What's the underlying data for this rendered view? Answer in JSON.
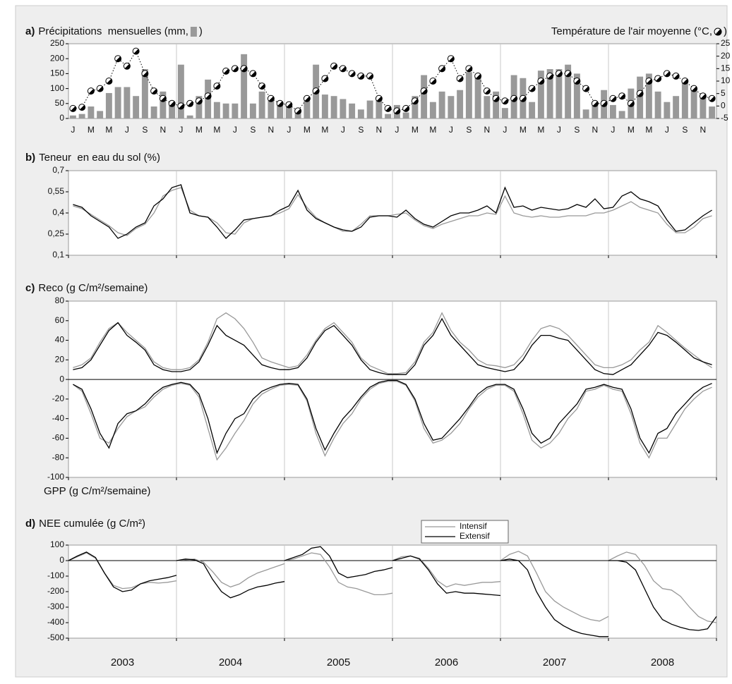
{
  "chart_data": [
    {
      "type": "bar",
      "label": "a)",
      "title": "Précipitations  mensuelles (mm,",
      "title_end": ")",
      "y2_title": "Température de l'air moyenne (°C,",
      "y2_title_end": ")",
      "categories": [
        "J",
        null,
        "M",
        null,
        "M",
        null,
        "J",
        null,
        "S",
        null,
        "N",
        null,
        "J",
        null,
        "M",
        null,
        "M",
        null,
        "J",
        null,
        "S",
        null,
        "N",
        null,
        "J",
        null,
        "M",
        null,
        "M",
        null,
        "J",
        null,
        "S",
        null,
        "N",
        null,
        "J",
        null,
        "M",
        null,
        "M",
        null,
        "J",
        null,
        "S",
        null,
        "N",
        null,
        "J",
        null,
        "M",
        null,
        "M",
        null,
        "J",
        null,
        "S",
        null,
        "N",
        null,
        "J",
        null,
        "M",
        null,
        "M",
        null,
        "J",
        null,
        "S",
        null,
        "N",
        null
      ],
      "ylim": [
        0,
        250
      ],
      "yticks": [
        0,
        50,
        100,
        150,
        200,
        250
      ],
      "y2lim": [
        -5,
        25
      ],
      "y2ticks": [
        -5,
        0,
        5,
        10,
        15,
        20,
        25
      ],
      "series": [
        {
          "type": "bar",
          "color": "#999999",
          "values": [
            10,
            15,
            40,
            25,
            85,
            105,
            105,
            75,
            165,
            40,
            90,
            45,
            180,
            10,
            75,
            130,
            55,
            50,
            50,
            215,
            50,
            90,
            60,
            45,
            40,
            25,
            60,
            180,
            80,
            75,
            65,
            50,
            30,
            60,
            70,
            15,
            45,
            20,
            75,
            145,
            55,
            90,
            75,
            95,
            155,
            140,
            75,
            90,
            35,
            145,
            135,
            55,
            160,
            165,
            165,
            180,
            150,
            30,
            55,
            95,
            45,
            25,
            100,
            140,
            150,
            90,
            55,
            75,
            120,
            95,
            70,
            40
          ]
        },
        {
          "type": "line",
          "axis": "y2",
          "color": "#000000",
          "values": [
            -1,
            -0.5,
            6,
            7,
            10,
            19,
            16,
            22,
            13,
            6,
            3,
            1,
            0,
            1,
            2,
            4,
            8,
            14,
            15,
            15,
            13,
            8,
            3,
            1,
            0.5,
            -2,
            3,
            6,
            11,
            16,
            15,
            13,
            12,
            12,
            3,
            -1,
            -2,
            -1,
            2,
            6,
            10,
            15,
            19,
            11,
            15,
            12,
            6,
            3,
            2,
            3,
            3,
            7,
            10,
            12,
            13,
            13,
            10,
            7,
            1,
            1,
            3,
            4,
            1,
            5,
            10,
            11,
            13,
            12,
            10,
            7,
            4,
            3
          ]
        }
      ]
    },
    {
      "type": "line",
      "label": "b)",
      "title": "Teneur  en eau du sol (%)",
      "ylim": [
        0.1,
        0.7
      ],
      "yticks": [
        {
          "value": 0.1,
          "label": "0,1"
        },
        {
          "value": 0.25,
          "label": "0,25"
        },
        {
          "value": 0.4,
          "label": "0,4"
        },
        {
          "value": 0.55,
          "label": "0,55"
        },
        {
          "value": 0.7,
          "label": "0,7"
        }
      ],
      "series": [
        {
          "color": "#999999",
          "values": [
            0.45,
            0.43,
            0.39,
            0.35,
            0.31,
            0.26,
            0.24,
            0.29,
            0.32,
            0.4,
            0.52,
            0.56,
            0.58,
            0.42,
            0.38,
            0.37,
            0.33,
            0.26,
            0.25,
            0.33,
            0.36,
            0.37,
            0.38,
            0.4,
            0.43,
            0.53,
            0.44,
            0.37,
            0.33,
            0.3,
            0.27,
            0.27,
            0.32,
            0.38,
            0.38,
            0.38,
            0.39,
            0.4,
            0.35,
            0.31,
            0.29,
            0.32,
            0.34,
            0.36,
            0.38,
            0.38,
            0.4,
            0.39,
            0.52,
            0.4,
            0.38,
            0.37,
            0.38,
            0.37,
            0.37,
            0.38,
            0.38,
            0.38,
            0.4,
            0.4,
            0.42,
            0.45,
            0.48,
            0.44,
            0.42,
            0.4,
            0.32,
            0.26,
            0.26,
            0.3,
            0.36,
            0.38
          ]
        },
        {
          "color": "#000000",
          "values": [
            0.46,
            0.44,
            0.38,
            0.34,
            0.3,
            0.22,
            0.25,
            0.3,
            0.33,
            0.45,
            0.5,
            0.58,
            0.6,
            0.4,
            0.38,
            0.37,
            0.3,
            0.22,
            0.28,
            0.35,
            0.36,
            0.37,
            0.38,
            0.42,
            0.45,
            0.56,
            0.42,
            0.36,
            0.33,
            0.3,
            0.28,
            0.27,
            0.3,
            0.37,
            0.38,
            0.38,
            0.37,
            0.42,
            0.36,
            0.32,
            0.3,
            0.34,
            0.38,
            0.4,
            0.4,
            0.42,
            0.45,
            0.4,
            0.58,
            0.44,
            0.45,
            0.42,
            0.44,
            0.43,
            0.42,
            0.43,
            0.46,
            0.44,
            0.5,
            0.43,
            0.44,
            0.52,
            0.55,
            0.5,
            0.48,
            0.45,
            0.35,
            0.27,
            0.28,
            0.33,
            0.38,
            0.42
          ]
        }
      ]
    },
    {
      "type": "line",
      "label": "c)",
      "title": "Reco (g C/m²/semaine)",
      "y_title_lower": "GPP (g C/m²/semaine)",
      "zero_line": true,
      "ylim": [
        -100,
        80
      ],
      "yticks": [
        -100,
        -80,
        -60,
        -40,
        -20,
        0,
        20,
        40,
        60,
        80
      ],
      "series": [
        {
          "color": "#999999",
          "values": [
            12,
            15,
            22,
            38,
            52,
            58,
            48,
            40,
            32,
            18,
            12,
            10,
            10,
            12,
            20,
            38,
            62,
            68,
            62,
            52,
            38,
            22,
            18,
            15,
            12,
            14,
            25,
            40,
            52,
            58,
            48,
            38,
            22,
            14,
            10,
            6,
            6,
            7,
            18,
            38,
            48,
            68,
            50,
            38,
            30,
            20,
            15,
            14,
            12,
            15,
            25,
            40,
            52,
            55,
            52,
            45,
            35,
            25,
            15,
            12,
            12,
            15,
            20,
            30,
            38,
            55,
            48,
            40,
            32,
            25,
            18,
            12
          ]
        },
        {
          "color": "#000000",
          "values": [
            10,
            12,
            20,
            35,
            50,
            58,
            45,
            38,
            30,
            15,
            10,
            8,
            8,
            10,
            18,
            35,
            55,
            45,
            40,
            35,
            25,
            15,
            12,
            10,
            10,
            12,
            22,
            38,
            50,
            55,
            45,
            35,
            20,
            10,
            7,
            5,
            5,
            5,
            15,
            35,
            45,
            62,
            45,
            35,
            25,
            15,
            12,
            10,
            8,
            10,
            20,
            35,
            45,
            45,
            42,
            40,
            30,
            20,
            10,
            6,
            5,
            10,
            15,
            25,
            35,
            48,
            45,
            38,
            30,
            22,
            18,
            15
          ]
        },
        {
          "color": "#999999",
          "values": [
            -5,
            -12,
            -35,
            -60,
            -65,
            -50,
            -38,
            -32,
            -28,
            -18,
            -10,
            -6,
            -4,
            -6,
            -18,
            -50,
            -82,
            -70,
            -55,
            -42,
            -25,
            -15,
            -10,
            -6,
            -5,
            -6,
            -22,
            -55,
            -78,
            -60,
            -45,
            -35,
            -20,
            -10,
            -4,
            -2,
            -2,
            -6,
            -22,
            -50,
            -65,
            -62,
            -55,
            -45,
            -30,
            -18,
            -10,
            -6,
            -6,
            -12,
            -35,
            -62,
            -70,
            -65,
            -55,
            -40,
            -30,
            -12,
            -10,
            -6,
            -10,
            -12,
            -35,
            -65,
            -80,
            -60,
            -60,
            -45,
            -30,
            -20,
            -12,
            -8
          ]
        },
        {
          "color": "#000000",
          "values": [
            -5,
            -10,
            -30,
            -55,
            -70,
            -45,
            -35,
            -32,
            -25,
            -15,
            -8,
            -5,
            -3,
            -5,
            -15,
            -40,
            -75,
            -55,
            -40,
            -35,
            -20,
            -12,
            -8,
            -5,
            -4,
            -5,
            -20,
            -50,
            -72,
            -55,
            -40,
            -30,
            -18,
            -8,
            -3,
            -1,
            -1,
            -5,
            -20,
            -45,
            -62,
            -60,
            -50,
            -40,
            -28,
            -15,
            -8,
            -5,
            -5,
            -10,
            -30,
            -55,
            -65,
            -60,
            -45,
            -35,
            -25,
            -10,
            -8,
            -5,
            -8,
            -10,
            -30,
            -60,
            -75,
            -55,
            -50,
            -35,
            -25,
            -15,
            -8,
            -4
          ]
        }
      ]
    },
    {
      "type": "line",
      "label": "d)",
      "title": "NEE cumulée (g C/m²)",
      "zero_line": true,
      "legend": "top",
      "categories": [
        "2003",
        "2004",
        "2005",
        "2006",
        "2007",
        "2008"
      ],
      "ylim": [
        -500,
        100
      ],
      "yticks": [
        -500,
        -400,
        -300,
        -200,
        -100,
        0,
        100
      ],
      "series": [
        {
          "name": "Intensif",
          "color": "#999999",
          "values": [
            [
              0,
              25,
              50,
              15,
              -80,
              -160,
              -180,
              -175,
              -150,
              -140,
              -145,
              -140,
              -130
            ],
            [
              0,
              5,
              10,
              -10,
              -70,
              -140,
              -170,
              -150,
              -110,
              -80,
              -60,
              -40,
              -20
            ],
            [
              0,
              10,
              30,
              50,
              40,
              -40,
              -140,
              -170,
              -180,
              -200,
              -220,
              -220,
              -210
            ],
            [
              0,
              25,
              30,
              15,
              -50,
              -130,
              -170,
              -150,
              -160,
              -150,
              -140,
              -140,
              -135
            ],
            [
              0,
              40,
              60,
              30,
              -80,
              -200,
              -260,
              -300,
              -330,
              -360,
              -380,
              -390,
              -360
            ],
            [
              0,
              30,
              55,
              40,
              -30,
              -130,
              -180,
              -190,
              -230,
              -300,
              -360,
              -390,
              -400
            ]
          ]
        },
        {
          "name": "Extensif",
          "color": "#000000",
          "values": [
            [
              0,
              30,
              55,
              20,
              -80,
              -170,
              -200,
              -190,
              -150,
              -130,
              -120,
              -110,
              -95
            ],
            [
              0,
              10,
              5,
              -20,
              -120,
              -200,
              -240,
              -220,
              -190,
              -170,
              -160,
              -145,
              -135
            ],
            [
              0,
              20,
              40,
              80,
              90,
              30,
              -80,
              -110,
              -100,
              -90,
              -70,
              -60,
              -45
            ],
            [
              0,
              15,
              30,
              10,
              -60,
              -150,
              -210,
              -200,
              -210,
              -210,
              -215,
              -220,
              -225
            ],
            [
              0,
              10,
              0,
              -60,
              -200,
              -300,
              -380,
              -420,
              -450,
              -470,
              -480,
              -490,
              -490
            ],
            [
              0,
              0,
              -10,
              -60,
              -180,
              -300,
              -380,
              -410,
              -430,
              -445,
              -450,
              -440,
              -360
            ]
          ]
        }
      ]
    }
  ]
}
